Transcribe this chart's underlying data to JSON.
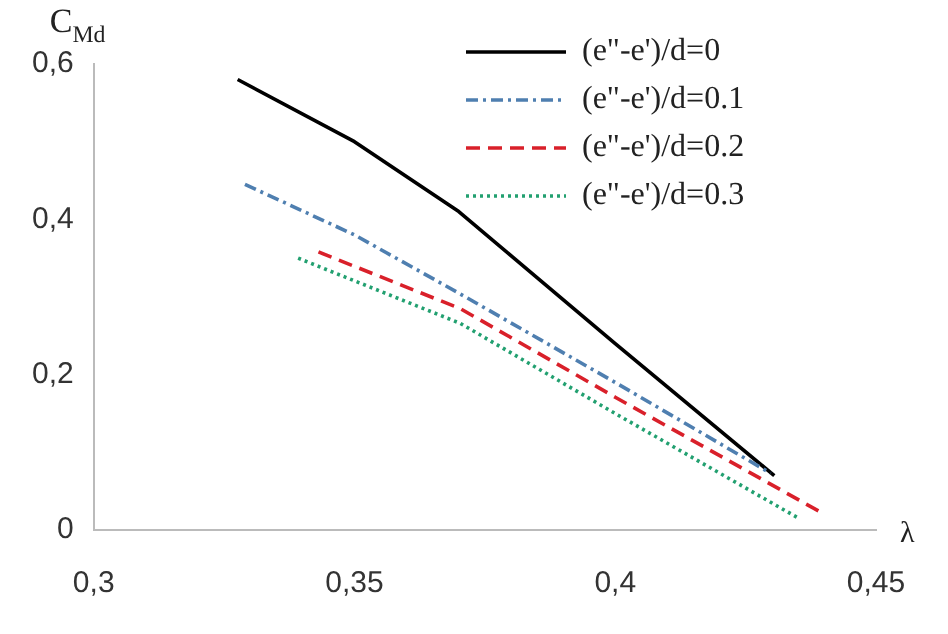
{
  "chart_data": {
    "type": "line",
    "xlabel": "λ",
    "ylabel": "C$_{Md}$",
    "xlim": [
      0.3,
      0.45
    ],
    "xticks": [
      {
        "value": 0.3,
        "label": "0,3"
      },
      {
        "value": 0.35,
        "label": "0,35"
      },
      {
        "value": 0.4,
        "label": "0,4"
      },
      {
        "value": 0.45,
        "label": "0,45"
      }
    ],
    "ylim": [
      0,
      0.6
    ],
    "yticks": [
      0,
      {
        "value": 0.2,
        "label": "0,2"
      },
      {
        "value": 0.4,
        "label": "0,4"
      },
      {
        "value": 0.6,
        "label": "0,6"
      }
    ],
    "grid": false,
    "legend": "top right",
    "marker": "none",
    "series": [
      {
        "name": "(e\"-e')/d=0",
        "color": "#000000",
        "line_style": "solid",
        "x": [
          0.3276,
          0.35,
          0.37,
          0.385,
          0.4,
          0.4305
        ],
        "values": [
          0.58,
          0.5,
          0.41,
          0.325,
          0.24,
          0.07
        ]
      },
      {
        "name": "(e\"-e')/d=0.1",
        "color": "#4f7fb0",
        "line_style": "dashdot",
        "x": [
          0.329,
          0.35,
          0.37,
          0.4,
          0.4298
        ],
        "values": [
          0.445,
          0.38,
          0.305,
          0.19,
          0.073
        ]
      },
      {
        "name": "(e\"-e')/d=0.2",
        "color": "#d9202a",
        "line_style": "dashed",
        "x": [
          0.3431,
          0.3703,
          0.4,
          0.4391
        ],
        "values": [
          0.358,
          0.285,
          0.171,
          0.024
        ]
      },
      {
        "name": "(e\"-e')/d=0.3",
        "color": "#22a070",
        "line_style": "dotted",
        "x": [
          0.3392,
          0.3703,
          0.4,
          0.4352
        ],
        "values": [
          0.35,
          0.266,
          0.15,
          0.015
        ]
      }
    ]
  }
}
